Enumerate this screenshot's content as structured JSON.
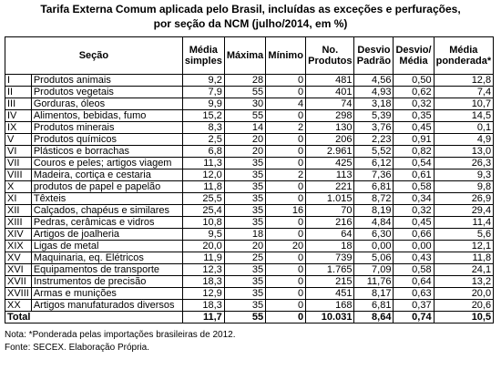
{
  "title": [
    "Tarifa Externa Comum aplicada pelo Brasil, incluídas as exceções e perfurações,",
    "por seção da NCM (julho/2014, em %)"
  ],
  "table": {
    "header": [
      "Seção",
      "Média simples",
      "Máxima",
      "Mínimo",
      "No. Produtos",
      "Desvio Padrão",
      "Desvio/ Média",
      "Média ponderada*"
    ],
    "rows": [
      [
        "I",
        "Produtos animais",
        "9,2",
        "28",
        "0",
        "481",
        "4,56",
        "0,50",
        "12,8"
      ],
      [
        "II",
        "Produtos vegetais",
        "7,9",
        "55",
        "0",
        "401",
        "4,93",
        "0,62",
        "7,4"
      ],
      [
        "III",
        "Gorduras, óleos",
        "9,9",
        "30",
        "4",
        "74",
        "3,18",
        "0,32",
        "10,7"
      ],
      [
        "IV",
        "Alimentos, bebidas, fumo",
        "15,2",
        "55",
        "0",
        "298",
        "5,39",
        "0,35",
        "14,5"
      ],
      [
        "IX",
        "Produtos minerais",
        "8,3",
        "14",
        "2",
        "130",
        "3,76",
        "0,45",
        "0,1"
      ],
      [
        "V",
        "Produtos químicos",
        "2,5",
        "20",
        "0",
        "206",
        "2,23",
        "0,91",
        "4,9"
      ],
      [
        "VI",
        "Plásticos e borrachas",
        "6,8",
        "20",
        "0",
        "2.961",
        "5,52",
        "0,82",
        "13,0"
      ],
      [
        "VII",
        "Couros e peles; artigos viagem",
        "11,3",
        "35",
        "0",
        "425",
        "6,12",
        "0,54",
        "26,3"
      ],
      [
        "VIII",
        "Madeira, cortiça e cestaria",
        "12,0",
        "35",
        "2",
        "113",
        "7,36",
        "0,61",
        "9,3"
      ],
      [
        "X",
        "produtos de papel e papelão",
        "11,8",
        "35",
        "0",
        "221",
        "6,81",
        "0,58",
        "9,8"
      ],
      [
        "XI",
        "Têxteis",
        "25,5",
        "35",
        "0",
        "1.015",
        "8,72",
        "0,34",
        "26,9"
      ],
      [
        "XII",
        "Calçados, chapéus e similares",
        "25,4",
        "35",
        "16",
        "70",
        "8,19",
        "0,32",
        "29,4"
      ],
      [
        "XIII",
        "Pedras, cerâmicas e vidros",
        "10,8",
        "35",
        "0",
        "216",
        "4,84",
        "0,45",
        "11,4"
      ],
      [
        "XIV",
        "Artigos de joalheria",
        "9,5",
        "18",
        "0",
        "64",
        "6,30",
        "0,66",
        "5,6"
      ],
      [
        "XIX",
        "Ligas de metal",
        "20,0",
        "20",
        "20",
        "18",
        "0,00",
        "0,00",
        "12,1"
      ],
      [
        "XV",
        "Maquinaria, eq. Elétricos",
        "11,9",
        "25",
        "0",
        "739",
        "5,06",
        "0,43",
        "11,8"
      ],
      [
        "XVI",
        "Equipamentos de transporte",
        "12,3",
        "35",
        "0",
        "1.765",
        "7,09",
        "0,58",
        "24,1"
      ],
      [
        "XVII",
        "Instrumentos de precisão",
        "18,3",
        "35",
        "0",
        "215",
        "11,76",
        "0,64",
        "13,2"
      ],
      [
        "XVIII",
        "Armas e munições",
        "12,9",
        "35",
        "0",
        "451",
        "8,17",
        "0,63",
        "20,0"
      ],
      [
        "XX",
        "Artigos manufaturados diversos",
        "18,3",
        "35",
        "0",
        "168",
        "6,81",
        "0,37",
        "20,6"
      ]
    ],
    "total": [
      "Total",
      "11,7",
      "55",
      "0",
      "10.031",
      "8,64",
      "0,74",
      "10,5"
    ]
  },
  "notes": [
    "Nota: *Ponderada pelas importações brasileiras de 2012.",
    "Fonte: SECEX. Elaboração Própria."
  ]
}
